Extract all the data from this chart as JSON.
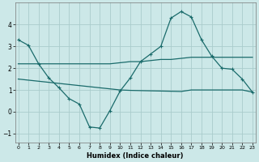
{
  "xlabel": "Humidex (Indice chaleur)",
  "background_color": "#cce8e8",
  "grid_color": "#aacccc",
  "line_color": "#1a6b6b",
  "x": [
    0,
    1,
    2,
    3,
    4,
    5,
    6,
    7,
    8,
    9,
    10,
    11,
    12,
    13,
    14,
    15,
    16,
    17,
    18,
    19,
    20,
    21,
    22,
    23
  ],
  "line1_y": [
    3.3,
    3.05,
    2.2,
    1.55,
    1.1,
    0.6,
    0.35,
    -0.7,
    -0.75,
    0.05,
    0.95,
    1.55,
    2.3,
    2.65,
    3.0,
    4.3,
    4.6,
    4.35,
    3.3,
    2.55,
    2.0,
    1.95,
    1.5,
    0.9
  ],
  "line2_y": [
    2.2,
    2.2,
    2.2,
    2.2,
    2.2,
    2.2,
    2.2,
    2.2,
    2.2,
    2.2,
    2.25,
    2.3,
    2.3,
    2.35,
    2.4,
    2.4,
    2.45,
    2.5,
    2.5,
    2.5,
    2.5,
    2.5,
    2.5,
    2.5
  ],
  "line3_y": [
    1.5,
    1.45,
    1.4,
    1.35,
    1.3,
    1.25,
    1.2,
    1.15,
    1.1,
    1.05,
    1.0,
    0.98,
    0.97,
    0.96,
    0.95,
    0.94,
    0.93,
    1.0,
    1.0,
    1.0,
    1.0,
    1.0,
    1.0,
    0.9
  ],
  "ylim": [
    -1.4,
    5.0
  ],
  "xlim": [
    -0.3,
    23.3
  ],
  "yticks": [
    -1,
    0,
    1,
    2,
    3,
    4
  ],
  "xticks": [
    0,
    1,
    2,
    3,
    4,
    5,
    6,
    7,
    8,
    9,
    10,
    11,
    12,
    13,
    14,
    15,
    16,
    17,
    18,
    19,
    20,
    21,
    22,
    23
  ]
}
